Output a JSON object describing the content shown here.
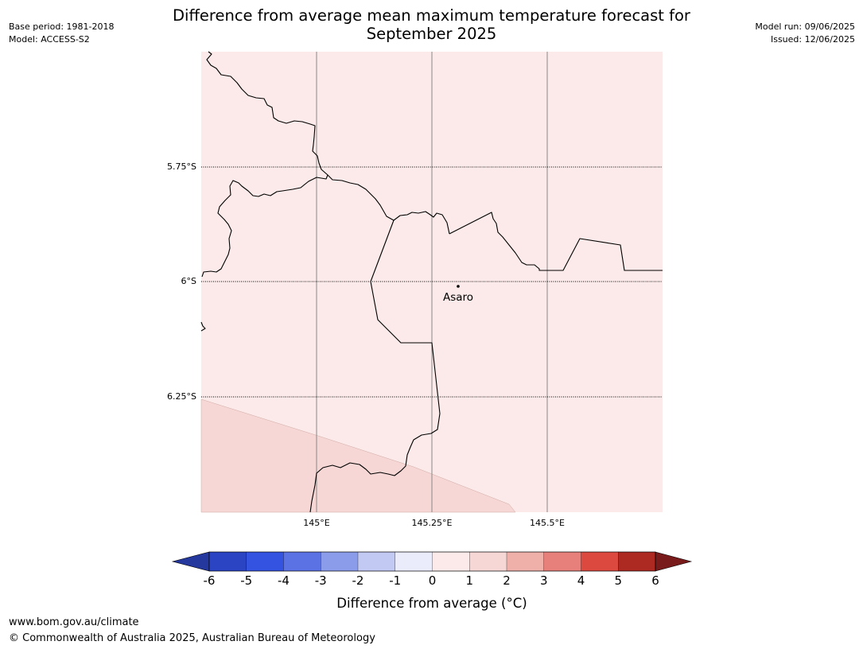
{
  "header": {
    "title_line1": "Difference from average mean maximum temperature forecast for",
    "title_line2": "September 2025",
    "base_period": "Base period: 1981-2018",
    "model": "Model: ACCESS-S2",
    "model_run": "Model run: 09/06/2025",
    "issued": "Issued: 12/06/2025"
  },
  "map": {
    "latitudes": [
      {
        "label": "5.75°S",
        "value": -5.75
      },
      {
        "label": "6°S",
        "value": -6.0
      },
      {
        "label": "6.25°S",
        "value": -6.25
      }
    ],
    "longitudes": [
      {
        "label": "145°E",
        "value": 145.0
      },
      {
        "label": "145.25°E",
        "value": 145.25
      },
      {
        "label": "145.5°E",
        "value": 145.5
      }
    ],
    "places": [
      {
        "name": "Asaro",
        "lon": 145.28,
        "lat": -6.01
      }
    ],
    "colors": {
      "zone_0_to_1": "#fbeae9",
      "zone_1_to_2": "#f6d7d5"
    }
  },
  "colorbar": {
    "label": "Difference from average (°C)",
    "ticks": [
      "-6",
      "-5",
      "-4",
      "-3",
      "-2",
      "-1",
      "0",
      "1",
      "2",
      "3",
      "4",
      "5",
      "6"
    ],
    "colors": [
      "#25389e",
      "#2a44c4",
      "#3453e0",
      "#5b72e4",
      "#8b9cea",
      "#c2c9f3",
      "#eaecfc",
      "#fbeae9",
      "#f6d7d5",
      "#efb0aa",
      "#e7807a",
      "#dc4a3f",
      "#ad2a22",
      "#7a1b1b"
    ],
    "under_color": "#25389e",
    "over_color": "#7a1b1b"
  },
  "footer": {
    "url": "www.bom.gov.au/climate",
    "copyright": "© Commonwealth of Australia 2025, Australian Bureau of Meteorology"
  }
}
